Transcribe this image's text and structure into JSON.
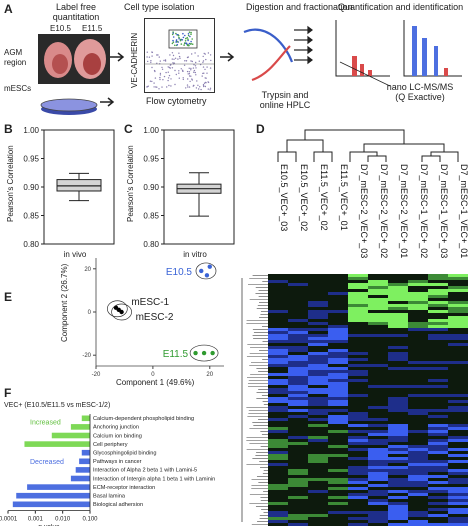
{
  "panelA": {
    "label": "A",
    "steps": {
      "lfq": "Label free\nquantitation",
      "isolation": "Cell type isolation",
      "digestion": "Digestion and fractionation",
      "quant": "Quantification and identification"
    },
    "e105": "E10.5",
    "e115": "E11.5",
    "agm": "AGM\nregion",
    "mescs": "mESCs",
    "flow_axis": "VE-CADHERIN",
    "flow_cytometry": "Flow cytometry",
    "trypsin": "Trypsin and\nonline HPLC",
    "lcms": "nano LC-MS/MS\n(Q Exactive)"
  },
  "panelB": {
    "label": "B",
    "ylabel": "Pearson's Correlation",
    "xlabel": "in vivo",
    "ticks": [
      "1.00",
      "0.95",
      "0.90",
      "0.85",
      "0.80"
    ]
  },
  "panelC": {
    "label": "C",
    "ylabel": "Pearson's Correlation",
    "xlabel": "in vitro",
    "ticks": [
      "1.00",
      "0.95",
      "0.90",
      "0.85",
      "0.80"
    ]
  },
  "panelD": {
    "label": "D",
    "samples": [
      "E10.5_VEC+_03",
      "E10.5_VEC+_02",
      "E11.5_VEC+_02",
      "E11.5_VEC+_01",
      "D7_mESC-2_VEC+_03",
      "D7_mESC-2_VEC+_02",
      "D7_mESC-2_VEC+_01",
      "D7_mESC-1_VEC+_02",
      "D7_mESC-1_VEC+_03",
      "D7_mESC-1_VEC+_01"
    ]
  },
  "panelE": {
    "label": "E",
    "xlabel": "Component 1 (49.6%)",
    "ylabel": "Component 2 (26.7%)",
    "groups": [
      "E10.5",
      "mESC-1",
      "mESC-2",
      "E11.5"
    ],
    "xticks": [
      "-20",
      "0",
      "20"
    ],
    "yticks": [
      "20",
      "0",
      "-20"
    ]
  },
  "panelF": {
    "label": "F",
    "title": "VEC+ (E10.5/E11.5 vs mESC-1/2)",
    "increased": "Increased",
    "decreased": "Decreased",
    "xlabel": "p-value",
    "xticks": [
      "0.0001",
      "0.001",
      "0.010",
      "0.100"
    ],
    "terms": [
      "Calcium-dependent phospholipid binding",
      "Anchoring junction",
      "Calcium ion binding",
      "Cell periphery",
      "Glycosphingolipid binding",
      "Pathways in cancer",
      "Interaction of Alpha 2 beta 1 with Lamini-5",
      "Interaction of Intergin alpha 1 beta 1 with Laminin",
      "ECM-receptor interaction",
      "Basal lamina",
      "Biological adhersion"
    ]
  },
  "chart_data": [
    {
      "type": "box",
      "panel": "B",
      "categories": [
        "in vivo"
      ],
      "ylabel": "Pearson's Correlation",
      "ylim": [
        0.8,
        1.0
      ],
      "box": {
        "whisker_low": 0.876,
        "q1": 0.893,
        "median": 0.902,
        "q3": 0.913,
        "whisker_high": 0.924
      }
    },
    {
      "type": "box",
      "panel": "C",
      "categories": [
        "in vitro"
      ],
      "ylabel": "Pearson's Correlation",
      "ylim": [
        0.8,
        1.0
      ],
      "box": {
        "whisker_low": 0.849,
        "q1": 0.889,
        "median": 0.897,
        "q3": 0.905,
        "whisker_high": 0.925
      }
    },
    {
      "type": "scatter",
      "panel": "E",
      "xlabel": "Component 1 (49.6%)",
      "ylabel": "Component 2 (26.7%)",
      "xlim": [
        -20,
        25
      ],
      "ylim": [
        -25,
        25
      ],
      "series": [
        {
          "name": "E10.5",
          "color": "#3a63d6",
          "points": [
            [
              17,
              19
            ],
            [
              20,
              21
            ],
            [
              19,
              17
            ]
          ]
        },
        {
          "name": "mESC-1",
          "color": "#000000",
          "points": [
            [
              -13,
              2
            ],
            [
              -12,
              1
            ]
          ]
        },
        {
          "name": "mESC-2",
          "color": "#000000",
          "points": [
            [
              -11,
              0
            ]
          ]
        },
        {
          "name": "E11.5",
          "color": "#2f9a2f",
          "points": [
            [
              15,
              -19
            ],
            [
              18,
              -19
            ],
            [
              21,
              -19
            ]
          ]
        }
      ]
    },
    {
      "type": "bar",
      "panel": "F",
      "orientation": "horizontal",
      "xlabel": "p-value",
      "xscale": "log",
      "xlim": [
        0.0001,
        0.1
      ],
      "reversed": true,
      "categories": [
        "Calcium-dependent phospholipid binding",
        "Anchoring junction",
        "Calcium ion binding",
        "Cell periphery",
        "Glycosphingolipid binding",
        "Pathways in cancer",
        "Interaction of Alpha 2 beta 1 with Lamini-5",
        "Interaction of Intergin alpha 1 beta 1 with Laminin",
        "ECM-receptor interaction",
        "Basal lamina",
        "Biological adhersion"
      ],
      "values": [
        0.05,
        0.02,
        0.004,
        0.0004,
        0.05,
        0.04,
        0.03,
        0.02,
        0.0005,
        0.0002,
        0.00015
      ],
      "groups": [
        "increased",
        "increased",
        "increased",
        "increased",
        "decreased",
        "decreased",
        "decreased",
        "decreased",
        "decreased",
        "decreased",
        "decreased"
      ],
      "colors": {
        "increased": "#7ed956",
        "decreased": "#4d6fe0"
      }
    }
  ]
}
